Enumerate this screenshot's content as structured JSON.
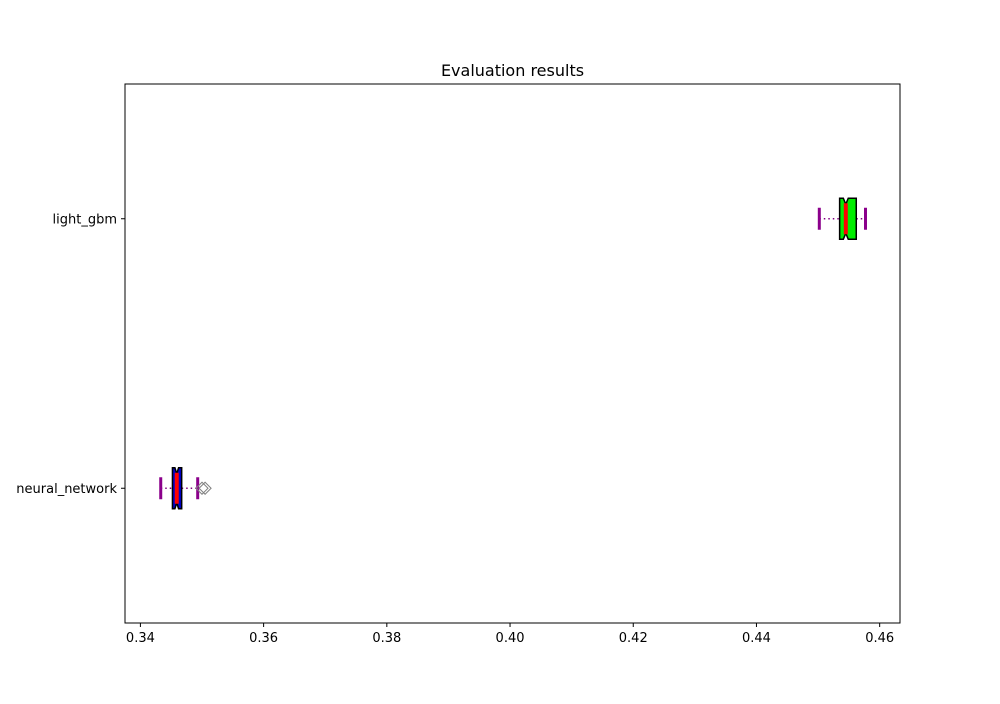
{
  "chart_data": {
    "type": "boxplot",
    "orientation": "horizontal",
    "title": "Evaluation results",
    "xlabel": "",
    "ylabel": "",
    "xlim": [
      0.3375,
      0.4633
    ],
    "xticks": [
      0.34,
      0.36,
      0.38,
      0.4,
      0.42,
      0.44,
      0.46
    ],
    "xtick_labels": [
      "0.34",
      "0.36",
      "0.38",
      "0.40",
      "0.42",
      "0.44",
      "0.46"
    ],
    "grid": false,
    "notched": true,
    "categories": [
      "light_gbm",
      "neural_network"
    ],
    "series": [
      {
        "name": "light_gbm",
        "whisker_low": 0.4502,
        "q1": 0.4535,
        "median": 0.4545,
        "q3": 0.4562,
        "whisker_high": 0.4577,
        "notch_low": 0.4541,
        "notch_high": 0.4549,
        "outliers": [],
        "box_color": "#00ee00"
      },
      {
        "name": "neural_network",
        "whisker_low": 0.3433,
        "q1": 0.3452,
        "median": 0.3459,
        "q3": 0.3467,
        "whisker_high": 0.3493,
        "notch_low": 0.3456,
        "notch_high": 0.3462,
        "outliers": [
          0.35,
          0.3505
        ],
        "box_color": "#0000cc"
      }
    ],
    "colors": {
      "box_edge": "#000000",
      "median": "#ff0000",
      "whisker": "#800080",
      "cap": "#8b008b",
      "outlier": "#808080"
    }
  }
}
